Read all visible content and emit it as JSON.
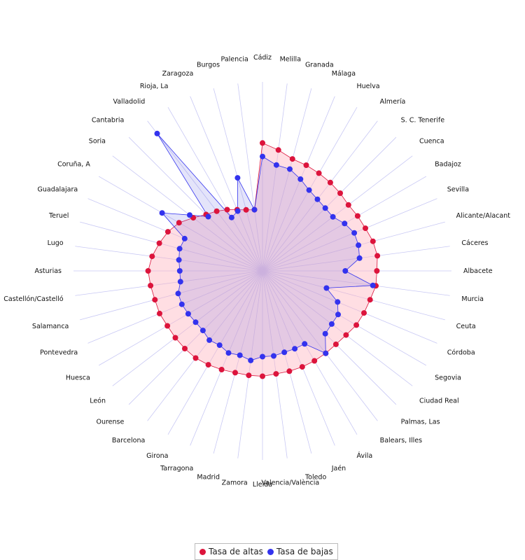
{
  "chart_data": {
    "type": "radar",
    "categories": [
      "Cádiz",
      "Melilla",
      "Granada",
      "Málaga",
      "Huelva",
      "Almería",
      "S. C. Tenerife",
      "Cuenca",
      "Badajoz",
      "Sevilla",
      "Alicante/Alacant",
      "Cáceres",
      "Albacete",
      "Murcia",
      "Ceuta",
      "Córdoba",
      "Segovia",
      "Ciudad Real",
      "Palmas, Las",
      "Balears, Illes",
      "Ávila",
      "Jaén",
      "Toledo",
      "Valencia/València",
      "Lleida",
      "Zamora",
      "Madrid",
      "Tarragona",
      "Girona",
      "Barcelona",
      "Ourense",
      "León",
      "Huesca",
      "Pontevedra",
      "Salamanca",
      "Castellón/Castelló",
      "Asturias",
      "Lugo",
      "Teruel",
      "Guadalajara",
      "Coruña, A",
      "Soria",
      "Cantabria",
      "Valladolid",
      "Rioja, La",
      "Zaragoza",
      "Burgos",
      "Palencia"
    ],
    "series": [
      {
        "name": "Tasa de altas",
        "color": "#dc143c",
        "fill": "rgba(255,182,193,0.45)",
        "values": [
          0.85,
          0.81,
          0.77,
          0.76,
          0.75,
          0.74,
          0.73,
          0.72,
          0.73,
          0.74,
          0.76,
          0.77,
          0.76,
          0.76,
          0.74,
          0.73,
          0.72,
          0.7,
          0.69,
          0.69,
          0.69,
          0.69,
          0.69,
          0.69,
          0.7,
          0.7,
          0.7,
          0.71,
          0.72,
          0.73,
          0.73,
          0.73,
          0.73,
          0.74,
          0.74,
          0.75,
          0.76,
          0.74,
          0.71,
          0.68,
          0.64,
          0.58,
          0.53,
          0.5,
          0.47,
          0.44,
          0.42,
          0.41
        ]
      },
      {
        "name": "Tasa de bajas",
        "color": "#3333ee",
        "fill": "rgba(120,120,230,0.20)",
        "values": [
          0.76,
          0.71,
          0.7,
          0.66,
          0.62,
          0.6,
          0.59,
          0.59,
          0.63,
          0.66,
          0.66,
          0.65,
          0.55,
          0.74,
          0.44,
          0.54,
          0.58,
          0.58,
          0.59,
          0.69,
          0.56,
          0.56,
          0.56,
          0.57,
          0.57,
          0.6,
          0.58,
          0.59,
          0.57,
          0.58,
          0.56,
          0.56,
          0.57,
          0.58,
          0.58,
          0.55,
          0.55,
          0.56,
          0.57,
          0.56,
          0.77,
          0.61,
          0.51,
          1.15,
          0.41,
          0.43,
          0.64,
          0.41
        ]
      }
    ],
    "rmax": 1.0,
    "legend": "bottom-center",
    "grid": true
  }
}
